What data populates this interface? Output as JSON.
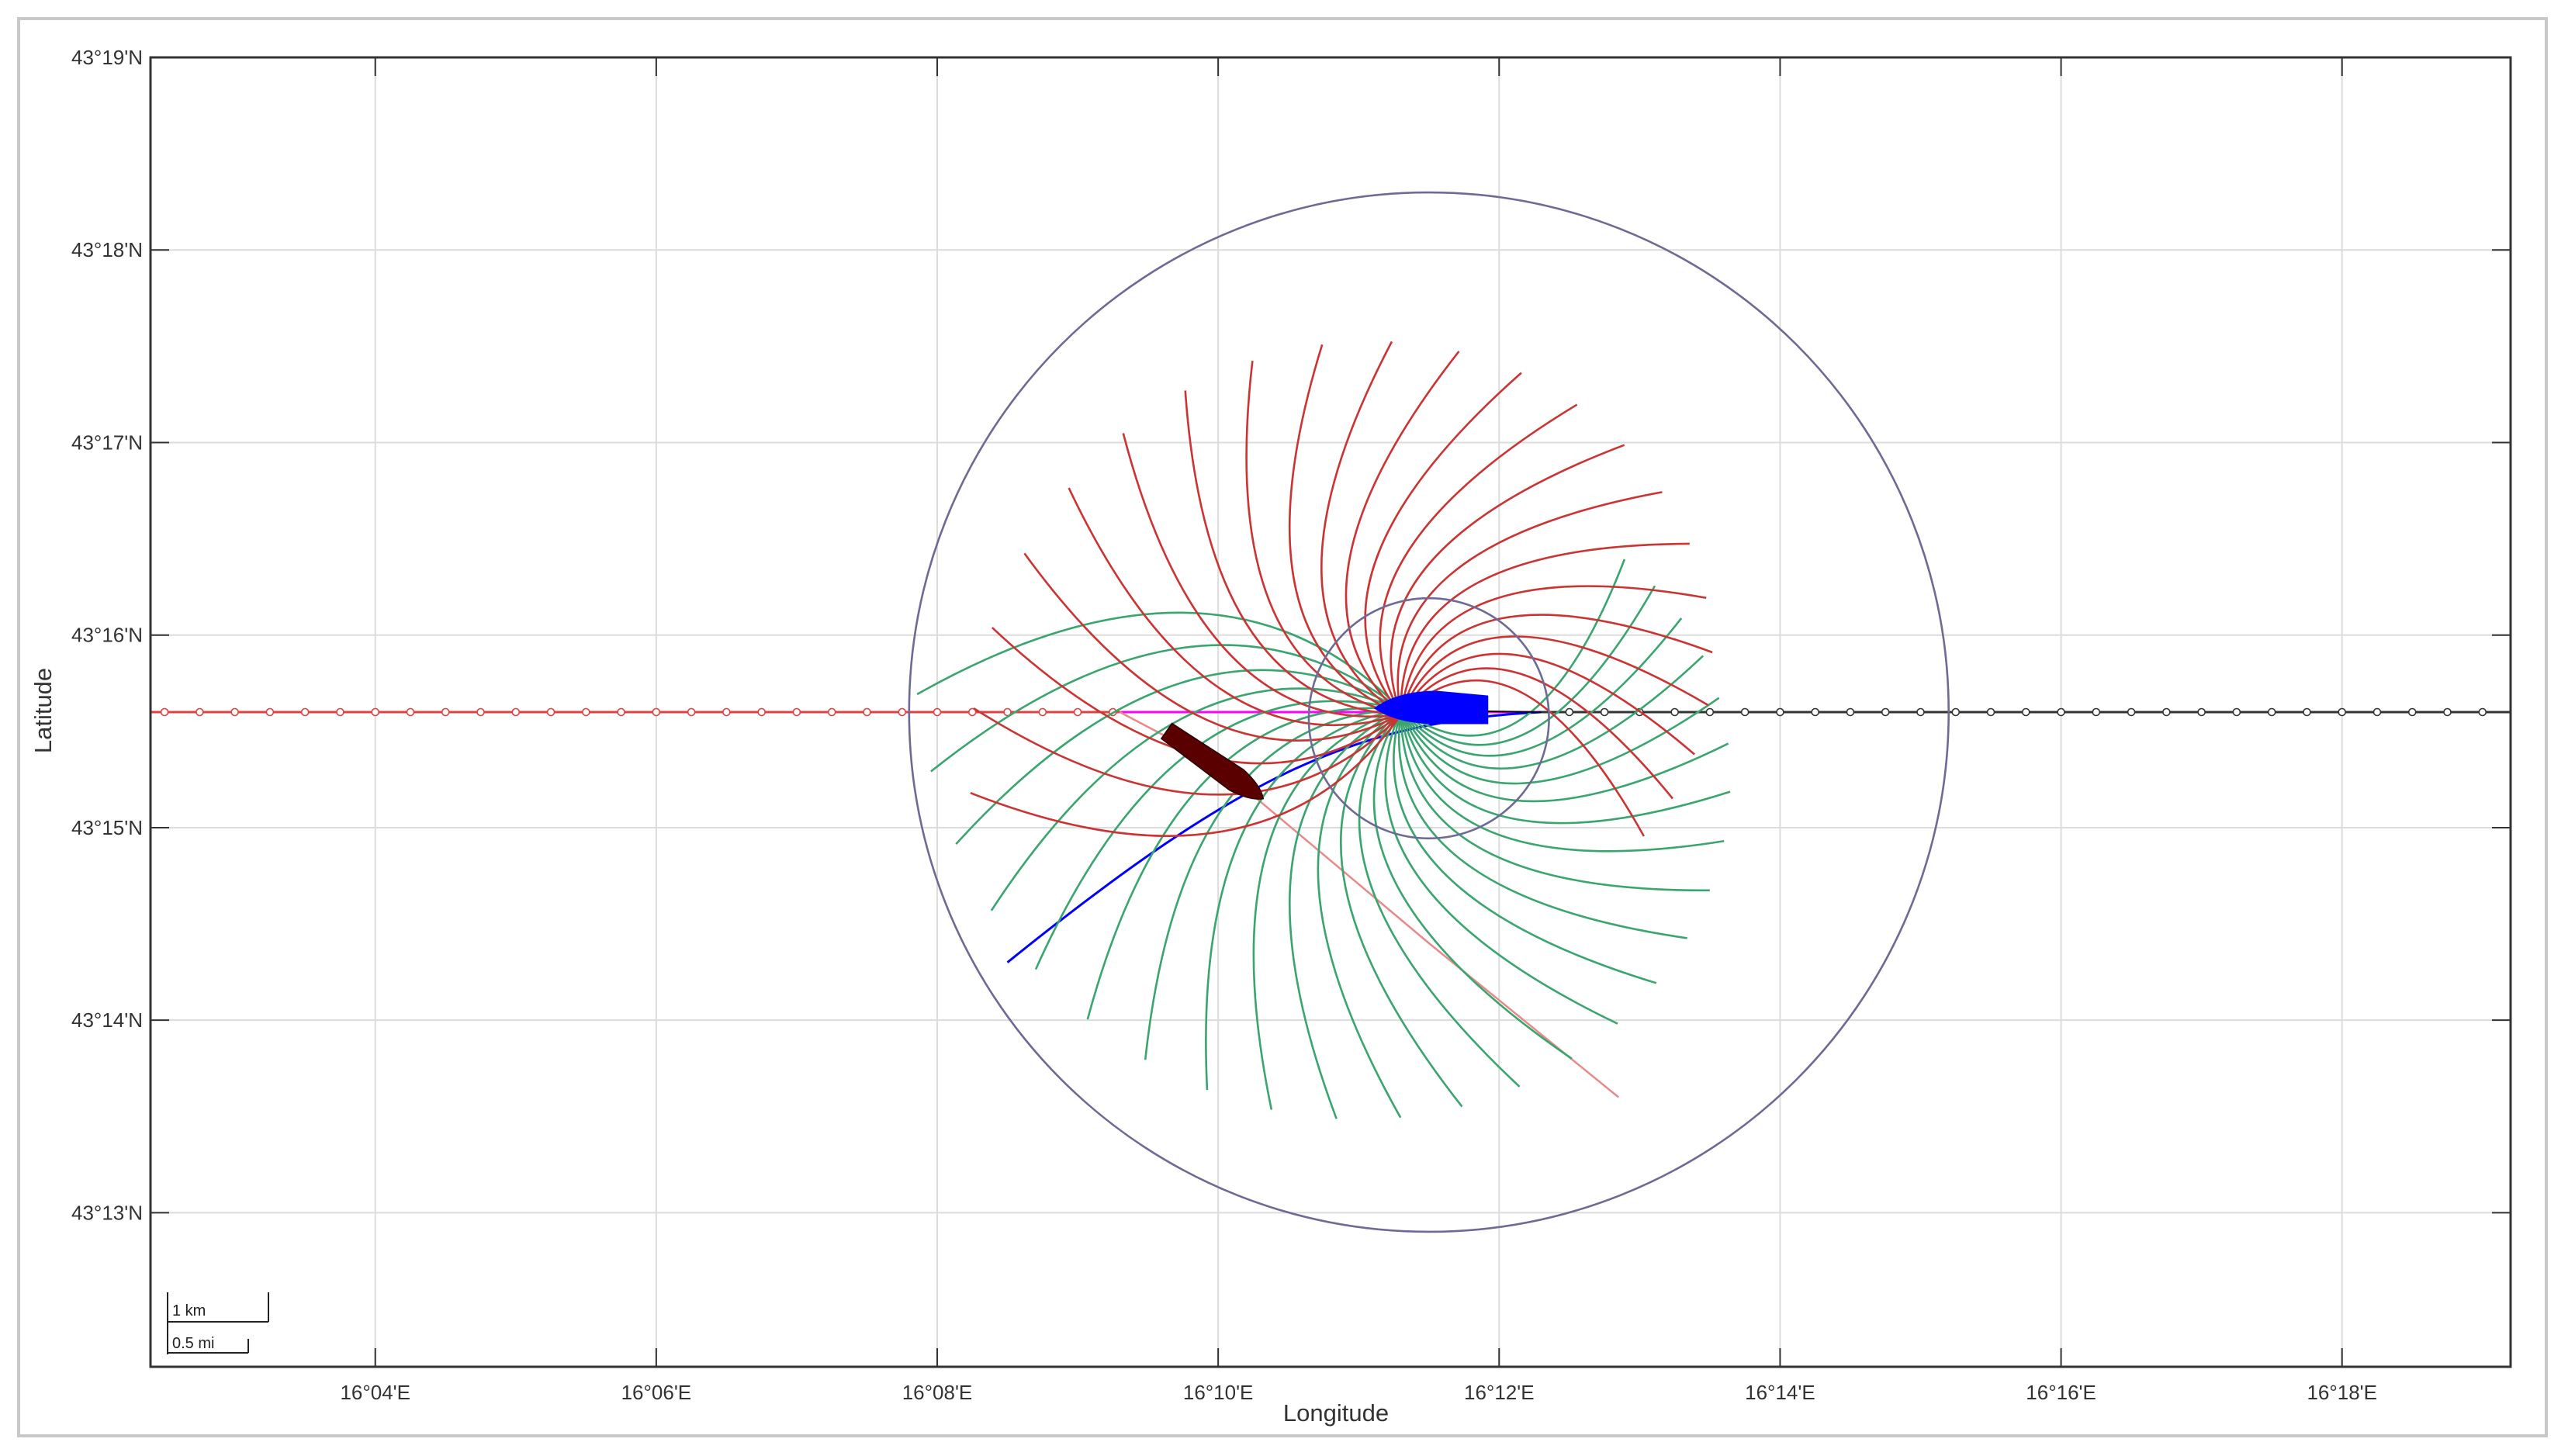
{
  "axes": {
    "xlabel": "Longitude",
    "ylabel": "Latitude",
    "x_ticks": [
      "16°04'E",
      "16°06'E",
      "16°08'E",
      "16°10'E",
      "16°12'E",
      "16°14'E",
      "16°16'E",
      "16°18'E"
    ],
    "y_ticks": [
      "43°19'N",
      "43°18'N",
      "43°17'N",
      "43°16'N",
      "43°15'N",
      "43°14'N",
      "43°13'N"
    ],
    "xlim_min": [
      2.4,
      19.2
    ],
    "ylim_min": [
      12.2,
      19.0
    ],
    "grid": true
  },
  "scale_bar": {
    "km_label": "1 km",
    "mi_label": "0.5 mi"
  },
  "colors": {
    "grid": "#dcdcdc",
    "frame": "#333333",
    "circle": "#6e6a96",
    "green_fan": "#3aa56f",
    "red_fan": "#cc3333",
    "own_path": "#0000ff",
    "own_ship": "#0000ff",
    "target_ship": "#5a0000",
    "magenta_line": "#ff00ff",
    "west_route": "#e04040",
    "east_route": "#333333"
  },
  "map": {
    "center_lon_min": 11.5,
    "center_lat_min": 15.6,
    "outer_radius_min": 3.7,
    "inner_radius_min": 0.9,
    "route_lat_min": 15.6,
    "route_marker_step_min": 0.25,
    "own_ship": {
      "lon_min": 11.5,
      "lat_min": 15.62,
      "heading": "west"
    },
    "target_ship": {
      "lon_min": 9.95,
      "lat_min": 15.34,
      "heading": "southeast"
    },
    "own_path": [
      [
        12.3,
        15.6
      ],
      [
        11.0,
        15.55
      ],
      [
        10.2,
        15.3
      ],
      [
        9.4,
        14.9
      ],
      [
        8.5,
        14.3
      ]
    ],
    "target_track": [
      [
        9.3,
        15.6
      ],
      [
        9.95,
        15.35
      ],
      [
        11.5,
        14.4
      ],
      [
        12.85,
        13.6
      ]
    ]
  }
}
